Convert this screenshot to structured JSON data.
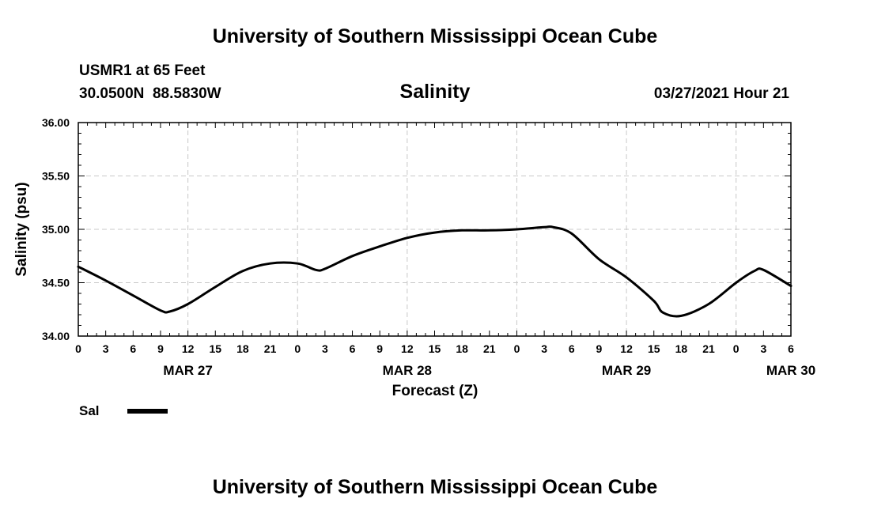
{
  "page": {
    "header_title": "University of Southern Mississippi Ocean Cube",
    "footer_title": "University of Southern Mississippi Ocean Cube",
    "station_line": "USMR1 at 65 Feet",
    "coords_line": "30.0500N  88.5830W",
    "chart_title": "Salinity",
    "datetime": "03/27/2021 Hour 21",
    "ylabel": "Salinity (psu)",
    "xlabel": "Forecast (Z)",
    "legend_label": "Sal"
  },
  "chart_data": {
    "type": "line",
    "title": "Salinity",
    "xlabel": "Forecast (Z)",
    "ylabel": "Salinity (psu)",
    "ylim": [
      34.0,
      36.0
    ],
    "yticks": [
      "34.00",
      "34.50",
      "35.00",
      "35.50",
      "36.00"
    ],
    "xlim_hours": [
      0,
      78
    ],
    "xtick_labels": [
      "0",
      "3",
      "6",
      "9",
      "12",
      "15",
      "18",
      "21",
      "0",
      "3",
      "6",
      "9",
      "12",
      "15",
      "18",
      "21",
      "0",
      "3",
      "6",
      "9",
      "12",
      "15",
      "18",
      "21",
      "0",
      "3",
      "6"
    ],
    "day_labels": [
      {
        "label": "MAR 27",
        "hour": 12
      },
      {
        "label": "MAR 28",
        "hour": 36
      },
      {
        "label": "MAR 29",
        "hour": 60
      },
      {
        "label": "MAR 30",
        "hour": 78
      }
    ],
    "grid": true,
    "legend_position": "bottom-left",
    "series": [
      {
        "name": "Sal",
        "color": "#000000",
        "x": [
          0,
          3,
          6,
          9,
          10,
          12,
          15,
          18,
          21,
          24,
          26,
          27,
          30,
          33,
          36,
          39,
          42,
          45,
          48,
          51,
          52,
          54,
          57,
          60,
          63,
          64,
          66,
          69,
          72,
          74,
          75,
          78
        ],
        "values": [
          34.65,
          34.52,
          34.38,
          34.24,
          34.23,
          34.3,
          34.46,
          34.61,
          34.68,
          34.68,
          34.62,
          34.63,
          34.75,
          34.84,
          34.92,
          34.97,
          34.99,
          34.99,
          35.0,
          35.02,
          35.02,
          34.96,
          34.72,
          34.55,
          34.33,
          34.22,
          34.19,
          34.3,
          34.5,
          34.61,
          34.62,
          34.47
        ]
      }
    ]
  }
}
